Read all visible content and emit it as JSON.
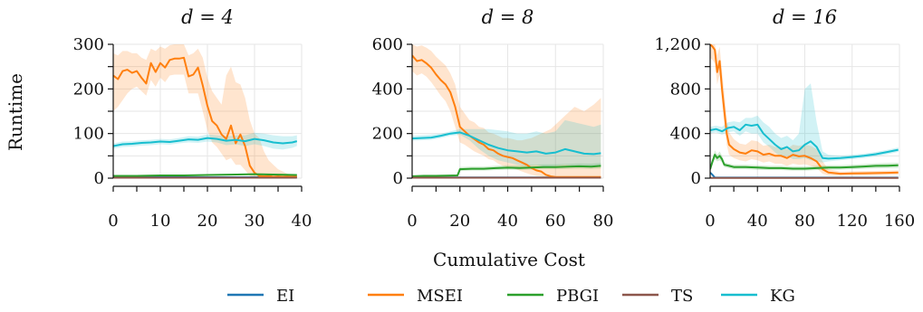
{
  "figure": {
    "ylabel": "Runtime",
    "xlabel": "Cumulative Cost"
  },
  "colors": {
    "EI": "#1f77b4",
    "MSEI": "#ff7f0e",
    "PBGI": "#2ca02c",
    "TS": "#8c564b",
    "KG": "#17becf"
  },
  "legend": [
    "EI",
    "MSEI",
    "PBGI",
    "TS",
    "KG"
  ],
  "chart_data": [
    {
      "type": "line",
      "title": "d = 4",
      "xlim": [
        0,
        40
      ],
      "ylim": [
        0,
        300
      ],
      "xticks": [
        0,
        10,
        20,
        30,
        40
      ],
      "xtick_labels": [
        "0",
        "10",
        "20",
        "30",
        "40"
      ],
      "yticks": [
        0,
        100,
        200,
        300
      ],
      "ytick_labels": [
        "0",
        "100",
        "200",
        "300"
      ],
      "grid": true,
      "series": [
        {
          "name": "EI",
          "x": [
            0,
            39
          ],
          "y": [
            2,
            2
          ]
        },
        {
          "name": "MSEI",
          "x": [
            0,
            1,
            2,
            3,
            4,
            5,
            6,
            7,
            8,
            9,
            10,
            11,
            12,
            13,
            14,
            15,
            16,
            17,
            18,
            19,
            20,
            21,
            22,
            23,
            24,
            25,
            26,
            27,
            28,
            29,
            30,
            31,
            32,
            33,
            34,
            35,
            36,
            37,
            38,
            39
          ],
          "y": [
            230,
            222,
            240,
            243,
            236,
            240,
            225,
            212,
            258,
            238,
            258,
            248,
            265,
            268,
            268,
            270,
            228,
            232,
            248,
            208,
            162,
            128,
            118,
            98,
            88,
            118,
            78,
            98,
            72,
            28,
            12,
            5,
            4,
            5,
            3,
            4,
            3,
            4,
            3,
            4
          ],
          "band_low": [
            150,
            160,
            175,
            190,
            200,
            205,
            195,
            185,
            220,
            205,
            225,
            215,
            230,
            232,
            232,
            232,
            190,
            190,
            190,
            150,
            108,
            80,
            70,
            55,
            40,
            45,
            30,
            30,
            18,
            5,
            2,
            1,
            1,
            1,
            1,
            1,
            1,
            1,
            1,
            1
          ],
          "band_high": [
            280,
            275,
            285,
            285,
            280,
            280,
            270,
            265,
            290,
            285,
            295,
            290,
            298,
            300,
            300,
            300,
            275,
            280,
            290,
            270,
            225,
            195,
            180,
            165,
            230,
            250,
            215,
            210,
            180,
            130,
            100,
            90,
            60,
            40,
            30,
            20,
            15,
            10,
            8,
            6
          ]
        },
        {
          "name": "PBGI",
          "x": [
            0,
            5,
            10,
            15,
            20,
            25,
            30,
            35,
            39
          ],
          "y": [
            5,
            5,
            6,
            6,
            7,
            8,
            9,
            8,
            7
          ],
          "band_low": [
            3,
            3,
            4,
            4,
            5,
            6,
            7,
            6,
            5
          ],
          "band_high": [
            7,
            7,
            8,
            8,
            9,
            10,
            11,
            10,
            9
          ]
        },
        {
          "name": "TS",
          "x": [
            0,
            39
          ],
          "y": [
            1,
            1
          ]
        },
        {
          "name": "KG",
          "x": [
            0,
            2,
            4,
            6,
            8,
            10,
            12,
            14,
            16,
            18,
            20,
            22,
            24,
            26,
            28,
            30,
            32,
            34,
            36,
            38,
            39
          ],
          "y": [
            72,
            76,
            77,
            79,
            80,
            82,
            81,
            84,
            87,
            86,
            90,
            88,
            84,
            86,
            83,
            88,
            85,
            80,
            78,
            80,
            83
          ],
          "band_low": [
            66,
            70,
            71,
            73,
            74,
            76,
            75,
            78,
            80,
            79,
            82,
            80,
            74,
            76,
            72,
            76,
            72,
            66,
            64,
            68,
            72
          ],
          "band_high": [
            78,
            82,
            83,
            85,
            86,
            88,
            87,
            90,
            94,
            93,
            98,
            96,
            94,
            96,
            96,
            102,
            100,
            96,
            94,
            94,
            96
          ]
        }
      ]
    },
    {
      "type": "line",
      "title": "d = 8",
      "xlim": [
        0,
        80
      ],
      "ylim": [
        0,
        600
      ],
      "xticks": [
        0,
        20,
        40,
        60,
        80
      ],
      "xtick_labels": [
        "0",
        "20",
        "40",
        "60",
        "80"
      ],
      "yticks": [
        0,
        200,
        400,
        600
      ],
      "ytick_labels": [
        "0",
        "200",
        "400",
        "600"
      ],
      "grid": true,
      "series": [
        {
          "name": "EI",
          "x": [
            0,
            79
          ],
          "y": [
            3,
            3
          ]
        },
        {
          "name": "MSEI",
          "x": [
            0,
            2,
            4,
            6,
            8,
            10,
            12,
            14,
            16,
            18,
            20,
            22,
            24,
            26,
            28,
            30,
            32,
            34,
            36,
            38,
            40,
            42,
            44,
            46,
            48,
            50,
            52,
            54,
            56,
            58,
            60,
            64,
            68,
            72,
            76,
            79
          ],
          "y": [
            550,
            525,
            530,
            515,
            495,
            465,
            440,
            420,
            385,
            320,
            230,
            210,
            190,
            175,
            160,
            150,
            130,
            125,
            110,
            100,
            95,
            90,
            80,
            70,
            60,
            45,
            35,
            30,
            15,
            8,
            5,
            5,
            5,
            5,
            5,
            5
          ],
          "band_low": [
            480,
            460,
            470,
            455,
            430,
            400,
            370,
            345,
            300,
            230,
            160,
            150,
            135,
            120,
            110,
            100,
            85,
            80,
            65,
            55,
            50,
            45,
            38,
            30,
            22,
            15,
            10,
            8,
            3,
            1,
            1,
            1,
            1,
            1,
            1,
            1
          ],
          "band_high": [
            600,
            590,
            595,
            585,
            570,
            545,
            525,
            505,
            470,
            420,
            320,
            290,
            260,
            250,
            230,
            225,
            205,
            200,
            190,
            180,
            180,
            175,
            170,
            170,
            175,
            180,
            190,
            200,
            210,
            220,
            240,
            280,
            320,
            300,
            330,
            360
          ]
        },
        {
          "name": "PBGI",
          "x": [
            0,
            5,
            10,
            15,
            19,
            20,
            25,
            30,
            35,
            40,
            45,
            50,
            55,
            60,
            65,
            70,
            75,
            79
          ],
          "y": [
            8,
            10,
            10,
            11,
            12,
            40,
            42,
            42,
            45,
            47,
            46,
            48,
            50,
            50,
            52,
            53,
            52,
            55
          ],
          "band_low": [
            4,
            6,
            6,
            7,
            8,
            32,
            34,
            34,
            36,
            38,
            37,
            39,
            40,
            40,
            41,
            42,
            41,
            43
          ],
          "band_high": [
            14,
            16,
            16,
            17,
            18,
            50,
            52,
            52,
            55,
            58,
            57,
            60,
            62,
            62,
            64,
            66,
            65,
            68
          ]
        },
        {
          "name": "TS",
          "x": [
            0,
            79
          ],
          "y": [
            2,
            2
          ]
        },
        {
          "name": "KG",
          "x": [
            0,
            4,
            8,
            12,
            16,
            20,
            24,
            28,
            32,
            36,
            40,
            44,
            48,
            52,
            56,
            60,
            64,
            68,
            72,
            76,
            79
          ],
          "y": [
            178,
            180,
            182,
            190,
            200,
            205,
            190,
            170,
            150,
            135,
            125,
            120,
            115,
            120,
            110,
            115,
            130,
            120,
            110,
            108,
            112
          ],
          "band_low": [
            168,
            170,
            172,
            180,
            190,
            195,
            170,
            130,
            100,
            80,
            70,
            60,
            55,
            60,
            50,
            55,
            60,
            55,
            50,
            50,
            52
          ],
          "band_high": [
            190,
            192,
            195,
            200,
            210,
            220,
            220,
            220,
            220,
            215,
            210,
            200,
            200,
            210,
            200,
            210,
            260,
            250,
            240,
            230,
            240
          ]
        }
      ]
    },
    {
      "type": "line",
      "title": "d = 16",
      "xlim": [
        0,
        160
      ],
      "ylim": [
        0,
        1200
      ],
      "xticks": [
        0,
        40,
        80,
        120,
        160
      ],
      "xtick_labels": [
        "0",
        "40",
        "80",
        "120",
        "160"
      ],
      "yticks": [
        0,
        400,
        800,
        1200
      ],
      "ytick_labels": [
        "0",
        "400",
        "800",
        "1,200"
      ],
      "grid": true,
      "series": [
        {
          "name": "EI",
          "x": [
            0,
            2,
            4,
            159
          ],
          "y": [
            50,
            30,
            5,
            5
          ]
        },
        {
          "name": "MSEI",
          "x": [
            0,
            2,
            4,
            6,
            8,
            10,
            12,
            14,
            16,
            20,
            25,
            30,
            35,
            40,
            45,
            50,
            55,
            60,
            65,
            70,
            75,
            80,
            85,
            90,
            95,
            100,
            110,
            120,
            130,
            140,
            150,
            159
          ],
          "y": [
            1200,
            1180,
            1150,
            950,
            1050,
            800,
            600,
            400,
            300,
            260,
            230,
            220,
            250,
            240,
            210,
            220,
            200,
            200,
            180,
            210,
            195,
            200,
            180,
            150,
            80,
            50,
            40,
            42,
            44,
            45,
            48,
            50
          ],
          "band_low": [
            1080,
            1060,
            1030,
            840,
            930,
            680,
            480,
            300,
            210,
            180,
            160,
            150,
            170,
            160,
            140,
            150,
            130,
            130,
            110,
            130,
            120,
            125,
            110,
            90,
            40,
            25,
            20,
            22,
            24,
            25,
            28,
            30
          ],
          "band_high": [
            1200,
            1200,
            1200,
            1100,
            1180,
            960,
            760,
            540,
            410,
            350,
            310,
            300,
            340,
            330,
            290,
            300,
            280,
            280,
            260,
            300,
            290,
            300,
            290,
            260,
            150,
            80,
            60,
            62,
            64,
            65,
            68,
            70
          ]
        },
        {
          "name": "PBGI",
          "x": [
            0,
            2,
            4,
            6,
            8,
            10,
            12,
            16,
            20,
            30,
            40,
            50,
            60,
            70,
            80,
            90,
            100,
            110,
            120,
            130,
            140,
            150,
            159
          ],
          "y": [
            80,
            150,
            210,
            180,
            200,
            170,
            120,
            110,
            100,
            100,
            95,
            90,
            90,
            85,
            85,
            90,
            95,
            95,
            100,
            105,
            110,
            112,
            115
          ],
          "band_low": [
            60,
            120,
            170,
            150,
            160,
            140,
            100,
            90,
            80,
            80,
            75,
            72,
            72,
            68,
            68,
            72,
            76,
            76,
            80,
            84,
            88,
            90,
            92
          ],
          "band_high": [
            100,
            180,
            250,
            210,
            240,
            200,
            140,
            130,
            120,
            120,
            115,
            110,
            110,
            105,
            105,
            110,
            115,
            115,
            120,
            126,
            132,
            135,
            138
          ]
        },
        {
          "name": "TS",
          "x": [
            0,
            159
          ],
          "y": [
            2,
            2
          ]
        },
        {
          "name": "KG",
          "x": [
            0,
            5,
            10,
            15,
            20,
            25,
            30,
            35,
            40,
            45,
            50,
            55,
            60,
            65,
            70,
            75,
            80,
            85,
            90,
            95,
            100,
            110,
            120,
            130,
            140,
            150,
            159
          ],
          "y": [
            430,
            440,
            420,
            450,
            460,
            430,
            480,
            470,
            480,
            400,
            350,
            300,
            260,
            280,
            240,
            250,
            300,
            330,
            280,
            180,
            175,
            180,
            190,
            200,
            215,
            235,
            255
          ],
          "band_low": [
            400,
            410,
            390,
            410,
            420,
            380,
            420,
            400,
            400,
            320,
            280,
            230,
            190,
            200,
            170,
            170,
            180,
            160,
            150,
            140,
            150,
            160,
            170,
            180,
            195,
            215,
            235
          ],
          "band_high": [
            460,
            470,
            460,
            500,
            510,
            500,
            540,
            540,
            560,
            500,
            460,
            400,
            360,
            380,
            340,
            400,
            800,
            850,
            500,
            240,
            210,
            200,
            210,
            220,
            235,
            255,
            275
          ]
        }
      ]
    }
  ]
}
